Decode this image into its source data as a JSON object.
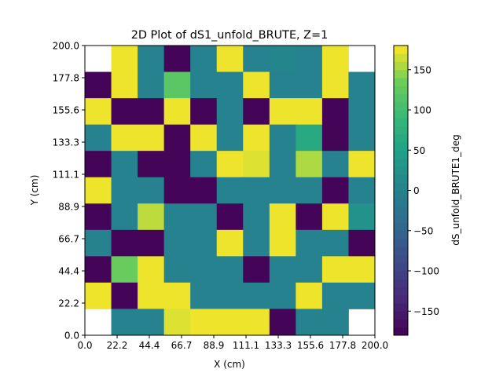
{
  "chart_data": {
    "type": "heatmap",
    "title": "2D Plot of dS1_unfold_BRUTE, Z=1",
    "xlabel": "X (cm)",
    "ylabel": "Y (cm)",
    "colorbar_label": "dS_unfold_BRUTE1_deg",
    "colormap": "viridis",
    "xlim": [
      0,
      200
    ],
    "ylim": [
      0,
      200
    ],
    "clim": [
      -180,
      180
    ],
    "x_ticks": [
      "0.0",
      "22.2",
      "44.4",
      "66.7",
      "88.9",
      "111.1",
      "133.3",
      "155.6",
      "177.8",
      "200.0"
    ],
    "y_ticks": [
      "0.0",
      "22.2",
      "44.4",
      "66.7",
      "88.9",
      "111.1",
      "133.3",
      "155.6",
      "177.8",
      "200.0"
    ],
    "colorbar_ticks": [
      "150",
      "100",
      "50",
      "0",
      "−50",
      "−100",
      "−150"
    ],
    "colorbar_tick_values": [
      150,
      100,
      50,
      0,
      -50,
      -100,
      -150
    ],
    "grid": false,
    "rows_top_to_bottom": [
      [
        null,
        175,
        0,
        -175,
        0,
        175,
        0,
        5,
        0,
        175,
        null
      ],
      [
        -175,
        175,
        0,
        120,
        0,
        0,
        175,
        0,
        0,
        175,
        0
      ],
      [
        175,
        -175,
        -175,
        175,
        -175,
        0,
        -175,
        175,
        175,
        -175,
        0
      ],
      [
        0,
        175,
        175,
        -175,
        175,
        0,
        175,
        0,
        65,
        -175,
        0
      ],
      [
        -175,
        0,
        -175,
        -175,
        0,
        175,
        170,
        0,
        155,
        0,
        175
      ],
      [
        175,
        0,
        0,
        -175,
        -175,
        0,
        0,
        0,
        0,
        -175,
        0
      ],
      [
        -175,
        0,
        160,
        0,
        0,
        -175,
        0,
        175,
        -175,
        175,
        25
      ],
      [
        0,
        -175,
        -175,
        0,
        0,
        175,
        0,
        175,
        0,
        0,
        -175
      ],
      [
        -175,
        130,
        175,
        0,
        0,
        0,
        -175,
        0,
        0,
        175,
        175
      ],
      [
        175,
        -175,
        175,
        175,
        0,
        0,
        0,
        0,
        175,
        0,
        0
      ],
      [
        null,
        0,
        0,
        170,
        175,
        175,
        175,
        -175,
        0,
        0,
        null
      ]
    ]
  }
}
